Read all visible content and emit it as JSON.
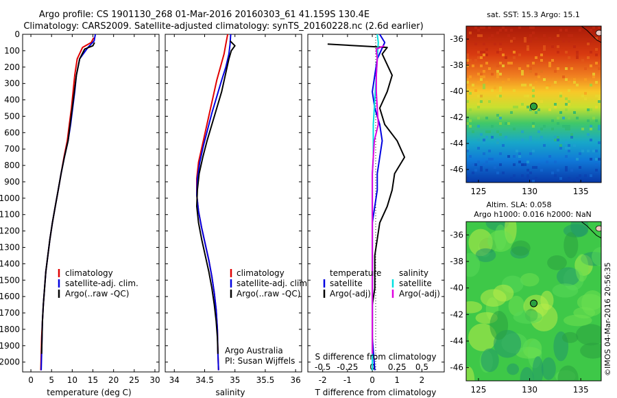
{
  "title_line1": "Argo profile: CS 1901130_268 01-Mar-2016 20160303_61 41.159S 130.4E",
  "title_line2": "Climatology: CARS2009. Satellite-adjusted climatology: synTS_20160228.nc (2.6d earlier)",
  "side_stamp": "©IMOS 04-Mar-2016 20:56:35",
  "colors": {
    "climatology": "#e00000",
    "satellite": "#0000e0",
    "argo": "#000000",
    "sal_satellite": "#00e0e0",
    "sal_argo": "#e000e0"
  },
  "depth_ticks": [
    "0",
    "100",
    "200",
    "300",
    "400",
    "500",
    "600",
    "700",
    "800",
    "900",
    "1000",
    "1100",
    "1200",
    "1300",
    "1400",
    "1500",
    "1600",
    "1700",
    "1800",
    "1900",
    "2000"
  ],
  "panels": {
    "temperature": {
      "xlabel": "temperature (deg C)",
      "xticks": [
        "0",
        "5",
        "10",
        "15",
        "20",
        "25",
        "30"
      ],
      "legend": [
        "climatology",
        "satellite-adj. clim.",
        "Argo(..raw -QC)"
      ]
    },
    "salinity": {
      "xlabel": "salinity",
      "xticks": [
        "34",
        "34.5",
        "35",
        "35.5",
        "36"
      ],
      "legend": [
        "climatology",
        "satellite-adj. clim.",
        "Argo(..raw -QC)"
      ],
      "credit1": "Argo Australia",
      "credit2": "PI: Susan Wijffels"
    },
    "difference": {
      "top_label": "S difference from climatology",
      "top_ticks": [
        "-0.5",
        "-0.25",
        "0",
        "0.25",
        "0.5"
      ],
      "xlabel": "T difference from climatology",
      "xticks": [
        "-2",
        "-1",
        "0",
        "1",
        "2"
      ],
      "legend_t_title": "temperature",
      "legend_t": [
        "satellite",
        "Argo(-adj)"
      ],
      "legend_s_title": "salinity",
      "legend_s": [
        "satellite",
        "Argo(-adj)"
      ]
    }
  },
  "maps": {
    "sst_title": "sat. SST: 15.3 Argo: 15.1",
    "sla_title1": "Altim. SLA: 0.058",
    "sla_title2": "Argo h1000: 0.016 h2000: NaN",
    "lat_ticks": [
      "-36",
      "-38",
      "-40",
      "-42",
      "-44",
      "-46"
    ],
    "lon_ticks": [
      "125",
      "130",
      "135"
    ],
    "float_lon": 130.4,
    "float_lat": -41.159
  },
  "chart_data": [
    {
      "type": "line",
      "xlabel": "temperature (deg C)",
      "ylabel": "",
      "xlim": [
        -2,
        31
      ],
      "ylim": [
        2060,
        0
      ],
      "series": [
        {
          "name": "climatology",
          "x": [
            15.2,
            14.6,
            12.5,
            11.2,
            10.6,
            10.2,
            9.8,
            9.3,
            8.8,
            8.0,
            7.3,
            6.6,
            5.9,
            5.2,
            4.6,
            4.1,
            3.6,
            3.3,
            3.0,
            2.8,
            2.6,
            2.5,
            2.4
          ],
          "y": [
            20,
            50,
            80,
            150,
            250,
            350,
            450,
            550,
            650,
            750,
            850,
            950,
            1050,
            1150,
            1250,
            1350,
            1450,
            1550,
            1650,
            1750,
            1850,
            1950,
            2050
          ]
        },
        {
          "name": "satellite-adj. clim.",
          "x": [
            15.6,
            15.3,
            13.8,
            11.8,
            11.0,
            10.6,
            10.1,
            9.6,
            9.0,
            8.1,
            7.3,
            6.6,
            5.9,
            5.2,
            4.6,
            4.1,
            3.6,
            3.3,
            3.0,
            2.8,
            2.7,
            2.6,
            2.5
          ],
          "y": [
            0,
            40,
            80,
            150,
            250,
            350,
            450,
            550,
            650,
            750,
            850,
            950,
            1050,
            1150,
            1250,
            1350,
            1450,
            1550,
            1650,
            1750,
            1850,
            1950,
            2050
          ]
        },
        {
          "name": "Argo(..raw -QC)",
          "x": [
            15.4,
            15.0,
            13.0,
            11.8,
            11.0,
            10.5,
            10.0,
            9.5,
            9.0,
            8.1,
            7.3,
            6.6,
            5.9,
            5.2,
            4.6,
            4.1,
            3.6,
            3.3,
            3.0,
            2.8,
            2.7,
            2.6
          ],
          "y": [
            50,
            70,
            90,
            150,
            250,
            350,
            450,
            550,
            650,
            750,
            850,
            950,
            1050,
            1150,
            1250,
            1350,
            1450,
            1550,
            1650,
            1750,
            1850,
            1950
          ]
        }
      ]
    },
    {
      "type": "line",
      "xlabel": "salinity",
      "ylabel": "",
      "xlim": [
        33.85,
        36.1
      ],
      "ylim": [
        2060,
        0
      ],
      "series": [
        {
          "name": "climatology",
          "x": [
            34.88,
            34.85,
            34.82,
            34.76,
            34.7,
            34.64,
            34.58,
            34.52,
            34.46,
            34.4,
            34.37,
            34.37,
            34.4,
            34.45,
            34.51,
            34.57,
            34.62,
            34.66,
            34.69,
            34.71,
            34.72,
            34.73
          ],
          "y": [
            0,
            60,
            120,
            200,
            280,
            380,
            480,
            580,
            680,
            780,
            880,
            980,
            1080,
            1180,
            1280,
            1380,
            1480,
            1580,
            1680,
            1800,
            1950,
            2050
          ]
        },
        {
          "name": "satellite-adj. clim.",
          "x": [
            34.93,
            34.92,
            34.9,
            34.85,
            34.78,
            34.7,
            34.62,
            34.55,
            34.48,
            34.42,
            34.38,
            34.37,
            34.4,
            34.45,
            34.51,
            34.57,
            34.62,
            34.66,
            34.69,
            34.71,
            34.72,
            34.73
          ],
          "y": [
            0,
            60,
            120,
            200,
            280,
            380,
            480,
            580,
            680,
            780,
            880,
            980,
            1080,
            1180,
            1280,
            1380,
            1480,
            1580,
            1680,
            1800,
            1950,
            2050
          ]
        },
        {
          "name": "Argo(..raw -QC)",
          "x": [
            34.92,
            35.0,
            34.94,
            34.9,
            34.84,
            34.78,
            34.7,
            34.62,
            34.54,
            34.47,
            34.41,
            34.38,
            34.37,
            34.4,
            34.45,
            34.51,
            34.57,
            34.62,
            34.66,
            34.69,
            34.71,
            34.72
          ],
          "y": [
            40,
            70,
            100,
            150,
            250,
            350,
            450,
            550,
            650,
            750,
            850,
            950,
            1050,
            1150,
            1250,
            1350,
            1450,
            1550,
            1650,
            1750,
            1850,
            1950
          ]
        }
      ]
    },
    {
      "type": "line",
      "xlabel": "T difference from climatology",
      "x2label": "S difference from climatology",
      "xlim": [
        -2.6,
        2.9
      ],
      "ylim": [
        2060,
        0
      ],
      "series": [
        {
          "name": "temperature satellite",
          "x": [
            0.3,
            0.5,
            0.2,
            0.1,
            0.0,
            0.1,
            0.3,
            0.4,
            0.3,
            0.2,
            0.2,
            0.1,
            0.0,
            0.0,
            0.0,
            0.0,
            0.0,
            0.0,
            0.0,
            0.0,
            0.1
          ],
          "y": [
            0,
            50,
            150,
            250,
            350,
            450,
            550,
            650,
            750,
            850,
            950,
            1050,
            1150,
            1250,
            1350,
            1450,
            1550,
            1650,
            1750,
            1850,
            2050
          ]
        },
        {
          "name": "temperature Argo(-adj)",
          "x": [
            -1.8,
            0.6,
            0.4,
            0.8,
            0.6,
            0.3,
            0.5,
            1.0,
            1.3,
            0.9,
            0.8,
            0.6,
            0.3,
            0.2,
            0.1,
            0.1,
            0.1,
            0.0,
            0.0,
            0.0,
            0.0
          ],
          "y": [
            60,
            80,
            120,
            250,
            350,
            450,
            550,
            650,
            750,
            850,
            950,
            1050,
            1150,
            1250,
            1350,
            1450,
            1550,
            1650,
            1750,
            1850,
            1950
          ]
        },
        {
          "name": "salinity satellite",
          "x": [
            0.05,
            0.06,
            0.05,
            0.04,
            0.03,
            0.02,
            0.01,
            0.01,
            0.01,
            0.0,
            0.0,
            0.0,
            0.0,
            0.0,
            0.0,
            0.0,
            0.0,
            0.0,
            0.0,
            0.0,
            0.0
          ],
          "y": [
            0,
            50,
            150,
            250,
            350,
            450,
            550,
            650,
            750,
            850,
            950,
            1050,
            1150,
            1250,
            1350,
            1450,
            1550,
            1650,
            1750,
            1850,
            2050
          ]
        },
        {
          "name": "salinity Argo(-adj)",
          "x": [
            0.12,
            0.04,
            0.05,
            0.04,
            0.04,
            0.05,
            0.06,
            0.02,
            0.01,
            0.0,
            0.0,
            0.0,
            0.0,
            0.0,
            0.0,
            0.0,
            0.0,
            0.0,
            0.0,
            0.0,
            0.0
          ],
          "y": [
            70,
            90,
            150,
            250,
            350,
            450,
            550,
            650,
            750,
            850,
            950,
            1050,
            1150,
            1250,
            1350,
            1450,
            1550,
            1650,
            1750,
            1850,
            1950
          ]
        }
      ]
    }
  ]
}
